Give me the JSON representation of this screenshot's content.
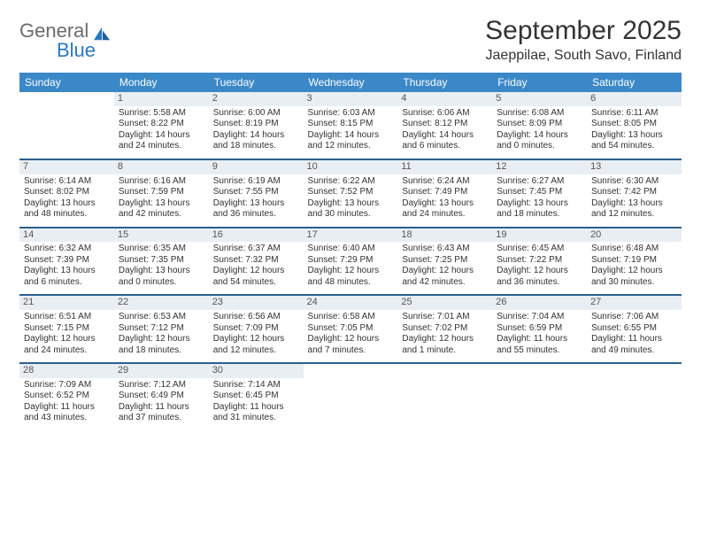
{
  "brand": {
    "word1": "General",
    "word2": "Blue"
  },
  "title": "September 2025",
  "subtitle": "Jaeppilae, South Savo, Finland",
  "colors": {
    "header_bg": "#3b88c9",
    "header_text": "#ffffff",
    "row_divider": "#2a5f8f",
    "daynum_bg": "#e9eef3",
    "text": "#333333",
    "brand_gray": "#6b6b6b",
    "brand_blue": "#2a78c2",
    "page_bg": "#ffffff"
  },
  "fonts": {
    "title_size": 30,
    "subtitle_size": 16,
    "header_size": 12,
    "cell_size": 10,
    "daynum_size": 11
  },
  "weekdays": [
    "Sunday",
    "Monday",
    "Tuesday",
    "Wednesday",
    "Thursday",
    "Friday",
    "Saturday"
  ],
  "weeks": [
    [
      {
        "empty": true
      },
      {
        "day": "1",
        "sunrise": "Sunrise: 5:58 AM",
        "sunset": "Sunset: 8:22 PM",
        "day1": "Daylight: 14 hours",
        "day2": "and 24 minutes."
      },
      {
        "day": "2",
        "sunrise": "Sunrise: 6:00 AM",
        "sunset": "Sunset: 8:19 PM",
        "day1": "Daylight: 14 hours",
        "day2": "and 18 minutes."
      },
      {
        "day": "3",
        "sunrise": "Sunrise: 6:03 AM",
        "sunset": "Sunset: 8:15 PM",
        "day1": "Daylight: 14 hours",
        "day2": "and 12 minutes."
      },
      {
        "day": "4",
        "sunrise": "Sunrise: 6:06 AM",
        "sunset": "Sunset: 8:12 PM",
        "day1": "Daylight: 14 hours",
        "day2": "and 6 minutes."
      },
      {
        "day": "5",
        "sunrise": "Sunrise: 6:08 AM",
        "sunset": "Sunset: 8:09 PM",
        "day1": "Daylight: 14 hours",
        "day2": "and 0 minutes."
      },
      {
        "day": "6",
        "sunrise": "Sunrise: 6:11 AM",
        "sunset": "Sunset: 8:05 PM",
        "day1": "Daylight: 13 hours",
        "day2": "and 54 minutes."
      }
    ],
    [
      {
        "day": "7",
        "sunrise": "Sunrise: 6:14 AM",
        "sunset": "Sunset: 8:02 PM",
        "day1": "Daylight: 13 hours",
        "day2": "and 48 minutes."
      },
      {
        "day": "8",
        "sunrise": "Sunrise: 6:16 AM",
        "sunset": "Sunset: 7:59 PM",
        "day1": "Daylight: 13 hours",
        "day2": "and 42 minutes."
      },
      {
        "day": "9",
        "sunrise": "Sunrise: 6:19 AM",
        "sunset": "Sunset: 7:55 PM",
        "day1": "Daylight: 13 hours",
        "day2": "and 36 minutes."
      },
      {
        "day": "10",
        "sunrise": "Sunrise: 6:22 AM",
        "sunset": "Sunset: 7:52 PM",
        "day1": "Daylight: 13 hours",
        "day2": "and 30 minutes."
      },
      {
        "day": "11",
        "sunrise": "Sunrise: 6:24 AM",
        "sunset": "Sunset: 7:49 PM",
        "day1": "Daylight: 13 hours",
        "day2": "and 24 minutes."
      },
      {
        "day": "12",
        "sunrise": "Sunrise: 6:27 AM",
        "sunset": "Sunset: 7:45 PM",
        "day1": "Daylight: 13 hours",
        "day2": "and 18 minutes."
      },
      {
        "day": "13",
        "sunrise": "Sunrise: 6:30 AM",
        "sunset": "Sunset: 7:42 PM",
        "day1": "Daylight: 13 hours",
        "day2": "and 12 minutes."
      }
    ],
    [
      {
        "day": "14",
        "sunrise": "Sunrise: 6:32 AM",
        "sunset": "Sunset: 7:39 PM",
        "day1": "Daylight: 13 hours",
        "day2": "and 6 minutes."
      },
      {
        "day": "15",
        "sunrise": "Sunrise: 6:35 AM",
        "sunset": "Sunset: 7:35 PM",
        "day1": "Daylight: 13 hours",
        "day2": "and 0 minutes."
      },
      {
        "day": "16",
        "sunrise": "Sunrise: 6:37 AM",
        "sunset": "Sunset: 7:32 PM",
        "day1": "Daylight: 12 hours",
        "day2": "and 54 minutes."
      },
      {
        "day": "17",
        "sunrise": "Sunrise: 6:40 AM",
        "sunset": "Sunset: 7:29 PM",
        "day1": "Daylight: 12 hours",
        "day2": "and 48 minutes."
      },
      {
        "day": "18",
        "sunrise": "Sunrise: 6:43 AM",
        "sunset": "Sunset: 7:25 PM",
        "day1": "Daylight: 12 hours",
        "day2": "and 42 minutes."
      },
      {
        "day": "19",
        "sunrise": "Sunrise: 6:45 AM",
        "sunset": "Sunset: 7:22 PM",
        "day1": "Daylight: 12 hours",
        "day2": "and 36 minutes."
      },
      {
        "day": "20",
        "sunrise": "Sunrise: 6:48 AM",
        "sunset": "Sunset: 7:19 PM",
        "day1": "Daylight: 12 hours",
        "day2": "and 30 minutes."
      }
    ],
    [
      {
        "day": "21",
        "sunrise": "Sunrise: 6:51 AM",
        "sunset": "Sunset: 7:15 PM",
        "day1": "Daylight: 12 hours",
        "day2": "and 24 minutes."
      },
      {
        "day": "22",
        "sunrise": "Sunrise: 6:53 AM",
        "sunset": "Sunset: 7:12 PM",
        "day1": "Daylight: 12 hours",
        "day2": "and 18 minutes."
      },
      {
        "day": "23",
        "sunrise": "Sunrise: 6:56 AM",
        "sunset": "Sunset: 7:09 PM",
        "day1": "Daylight: 12 hours",
        "day2": "and 12 minutes."
      },
      {
        "day": "24",
        "sunrise": "Sunrise: 6:58 AM",
        "sunset": "Sunset: 7:05 PM",
        "day1": "Daylight: 12 hours",
        "day2": "and 7 minutes."
      },
      {
        "day": "25",
        "sunrise": "Sunrise: 7:01 AM",
        "sunset": "Sunset: 7:02 PM",
        "day1": "Daylight: 12 hours",
        "day2": "and 1 minute."
      },
      {
        "day": "26",
        "sunrise": "Sunrise: 7:04 AM",
        "sunset": "Sunset: 6:59 PM",
        "day1": "Daylight: 11 hours",
        "day2": "and 55 minutes."
      },
      {
        "day": "27",
        "sunrise": "Sunrise: 7:06 AM",
        "sunset": "Sunset: 6:55 PM",
        "day1": "Daylight: 11 hours",
        "day2": "and 49 minutes."
      }
    ],
    [
      {
        "day": "28",
        "sunrise": "Sunrise: 7:09 AM",
        "sunset": "Sunset: 6:52 PM",
        "day1": "Daylight: 11 hours",
        "day2": "and 43 minutes."
      },
      {
        "day": "29",
        "sunrise": "Sunrise: 7:12 AM",
        "sunset": "Sunset: 6:49 PM",
        "day1": "Daylight: 11 hours",
        "day2": "and 37 minutes."
      },
      {
        "day": "30",
        "sunrise": "Sunrise: 7:14 AM",
        "sunset": "Sunset: 6:45 PM",
        "day1": "Daylight: 11 hours",
        "day2": "and 31 minutes."
      },
      {
        "empty": true
      },
      {
        "empty": true
      },
      {
        "empty": true
      },
      {
        "empty": true
      }
    ]
  ]
}
